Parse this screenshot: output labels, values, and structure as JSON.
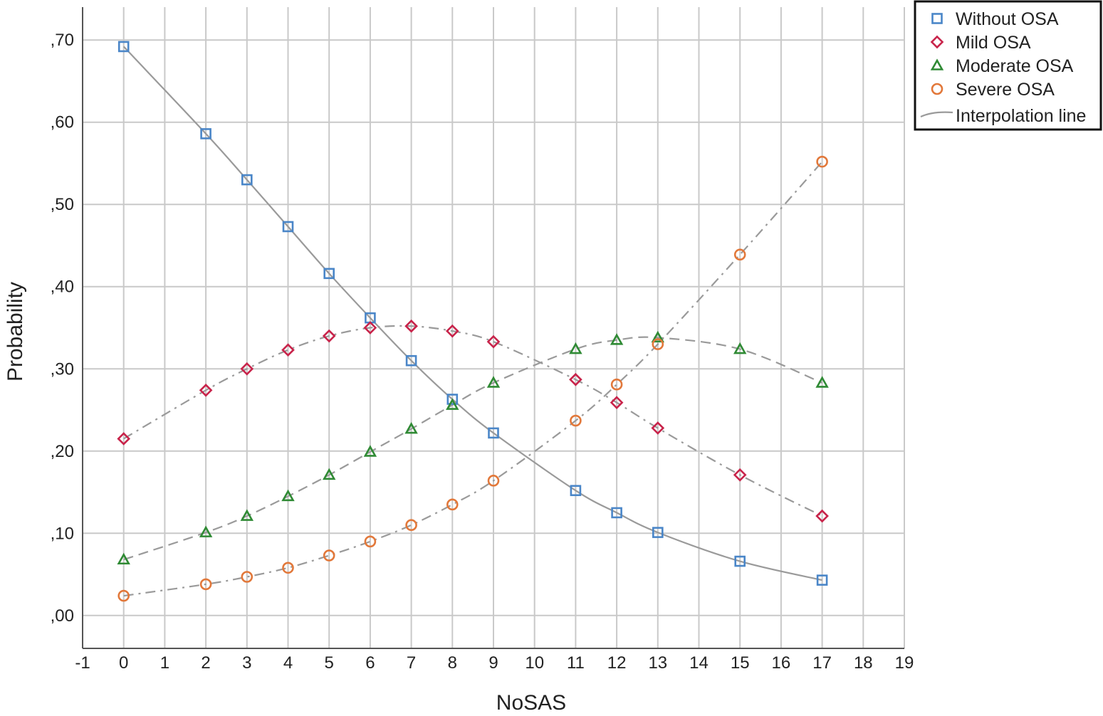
{
  "chart_data": {
    "type": "scatter",
    "xlabel": "NoSAS",
    "ylabel": "Probability",
    "xlim": [
      -1,
      19
    ],
    "ylim": [
      -0.04,
      0.74
    ],
    "xticks": [
      -1,
      0,
      1,
      2,
      3,
      4,
      5,
      6,
      7,
      8,
      9,
      10,
      11,
      12,
      13,
      14,
      15,
      16,
      17,
      18,
      19
    ],
    "xtick_labels": [
      "-1",
      "0",
      "1",
      "2",
      "3",
      "4",
      "5",
      "6",
      "7",
      "8",
      "9",
      "10",
      "11",
      "12",
      "13",
      "14",
      "15",
      "16",
      "17",
      "18",
      "19"
    ],
    "yticks": [
      0.0,
      0.1,
      0.2,
      0.3,
      0.4,
      0.5,
      0.6,
      0.7
    ],
    "ytick_labels": [
      ",00",
      ",10",
      ",20",
      ",30",
      ",40",
      ",50",
      ",60",
      ",70"
    ],
    "grid": true,
    "legend_position": "top-right outside",
    "x": [
      0,
      2,
      3,
      4,
      5,
      6,
      7,
      8,
      9,
      11,
      12,
      13,
      15,
      17
    ],
    "series": [
      {
        "name": "Without OSA",
        "marker": "square",
        "color": "#4a86c8",
        "line_style": "solid",
        "values": [
          0.692,
          0.586,
          0.53,
          0.473,
          0.416,
          0.362,
          0.31,
          0.263,
          0.222,
          0.152,
          0.125,
          0.101,
          0.066,
          0.043
        ]
      },
      {
        "name": "Mild OSA",
        "marker": "diamond",
        "color": "#c8234a",
        "line_style": "dashdot",
        "values": [
          0.215,
          0.274,
          0.3,
          0.323,
          0.34,
          0.35,
          0.352,
          0.346,
          0.333,
          0.287,
          0.259,
          0.228,
          0.171,
          0.121
        ]
      },
      {
        "name": "Moderate OSA",
        "marker": "triangle",
        "color": "#2f8a34",
        "line_style": "dashed",
        "values": [
          0.068,
          0.101,
          0.121,
          0.145,
          0.171,
          0.199,
          0.227,
          0.256,
          0.283,
          0.324,
          0.335,
          0.338,
          0.324,
          0.283
        ]
      },
      {
        "name": "Severe OSA",
        "marker": "circle",
        "color": "#e2783a",
        "line_style": "dashdot",
        "values": [
          0.024,
          0.038,
          0.047,
          0.058,
          0.073,
          0.09,
          0.11,
          0.135,
          0.164,
          0.237,
          0.281,
          0.33,
          0.439,
          0.552
        ]
      }
    ],
    "legend_entries": [
      "Without OSA",
      "Mild OSA",
      "Moderate OSA",
      "Severe OSA",
      "Interpolation line"
    ]
  }
}
